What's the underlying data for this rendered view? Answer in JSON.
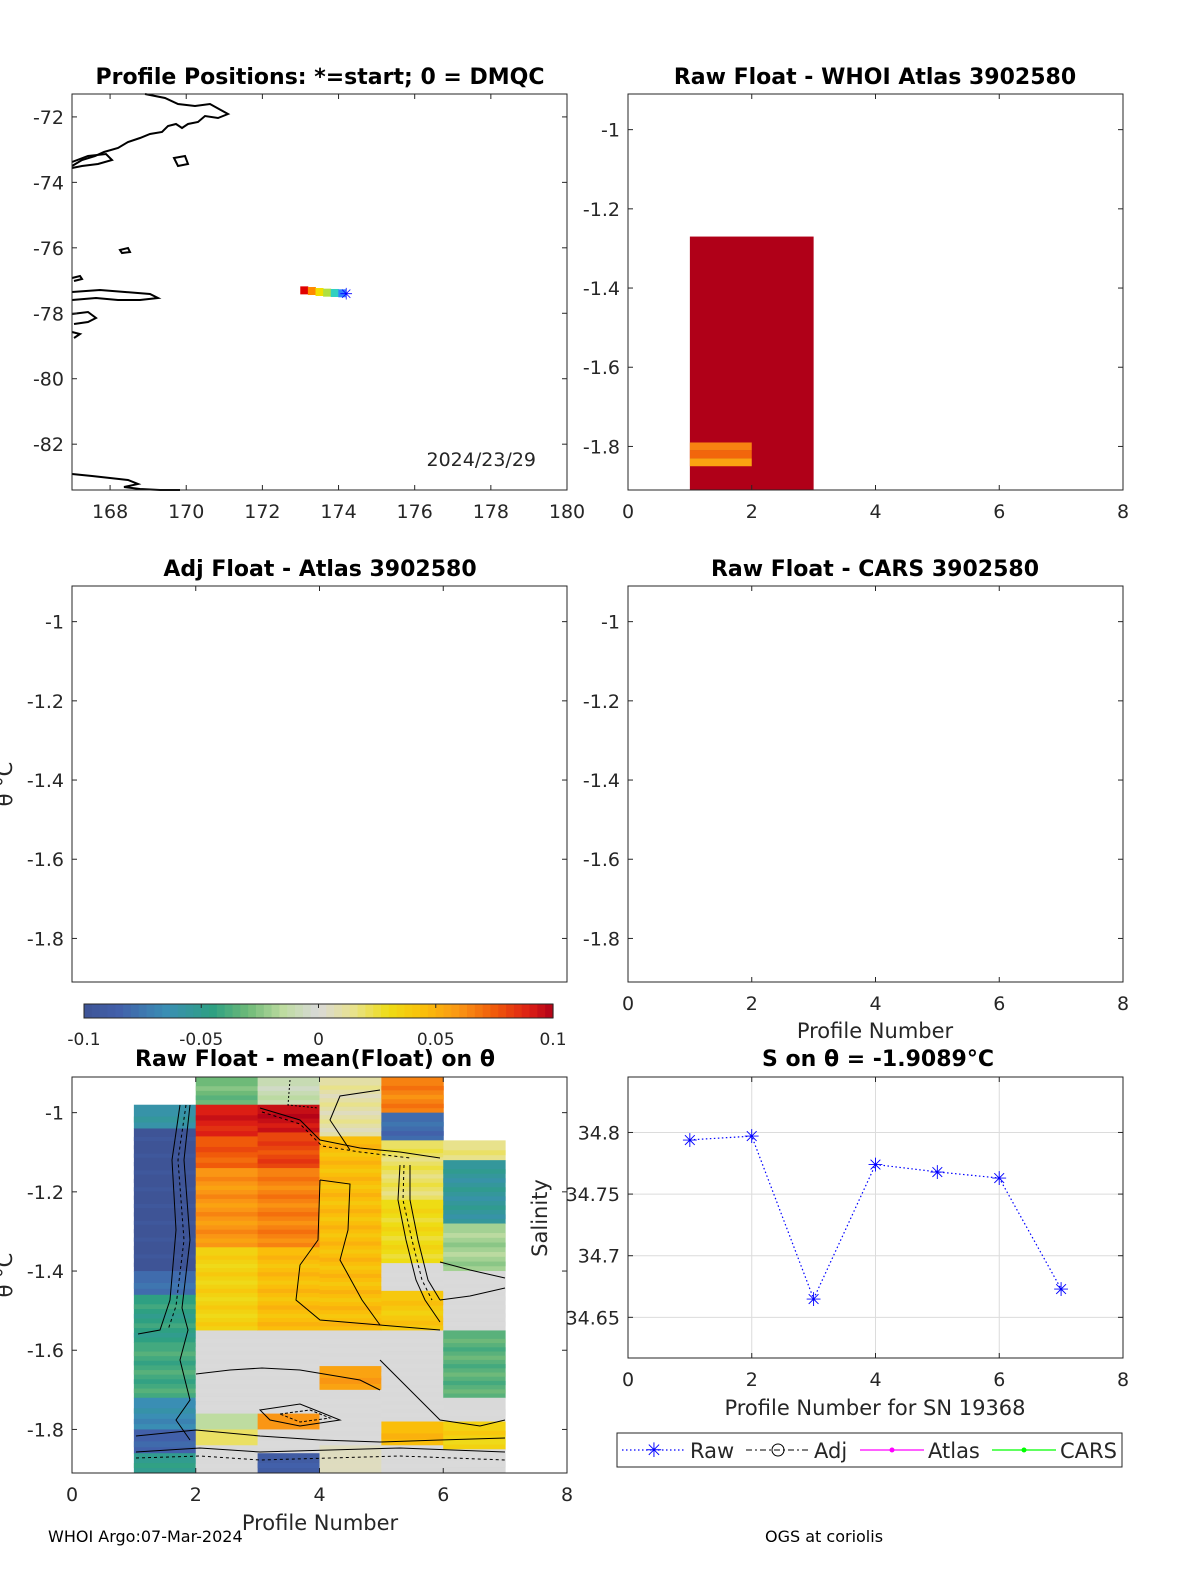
{
  "colors": {
    "raw": "#0000ff",
    "adj": "#000000",
    "atlas": "#ff00ff",
    "cars": "#00ff00"
  },
  "panel_positions": {
    "title": "Profile Positions: *=start; 0 = DMQC",
    "date_text": "2024/23/29",
    "xticks": [
      "168",
      "170",
      "172",
      "174",
      "176",
      "178",
      "180"
    ],
    "yticks": [
      "-72",
      "-74",
      "-76",
      "-78",
      "-80",
      "-82"
    ]
  },
  "panel_raw_atlas": {
    "title": "Raw Float - WHOI Atlas  3902580",
    "xticks": [
      "0",
      "2",
      "4",
      "6",
      "8"
    ],
    "yticks": [
      "-1",
      "-1.2",
      "-1.4",
      "-1.6",
      "-1.8"
    ]
  },
  "panel_adj_atlas": {
    "title": "Adj Float - Atlas  3902580",
    "ylabel": "θ °C",
    "yticks": [
      "-1",
      "-1.2",
      "-1.4",
      "-1.6",
      "-1.8"
    ]
  },
  "panel_raw_cars": {
    "title": "Raw Float - CARS  3902580",
    "xlabel": "Profile Number",
    "xticks": [
      "0",
      "2",
      "4",
      "6",
      "8"
    ],
    "yticks": [
      "-1",
      "-1.2",
      "-1.4",
      "-1.6",
      "-1.8"
    ]
  },
  "colorbar": {
    "ticks": [
      "-0.1",
      "-0.05",
      "0",
      "0.05",
      "0.1"
    ]
  },
  "panel_mean_float": {
    "title": "Raw Float - mean(Float) on θ",
    "xlabel": "Profile Number",
    "ylabel": "θ °C",
    "xticks": [
      "0",
      "2",
      "4",
      "6",
      "8"
    ],
    "yticks": [
      "-1",
      "-1.2",
      "-1.4",
      "-1.6",
      "-1.8"
    ]
  },
  "panel_salinity": {
    "title": "S on θ = -1.9089°C",
    "xlabel": "Profile Number for SN 19368",
    "ylabel": "Salinity",
    "xticks": [
      "0",
      "2",
      "4",
      "6",
      "8"
    ],
    "yticks": [
      "34.8",
      "34.75",
      "34.7",
      "34.65"
    ]
  },
  "legend": {
    "raw": "Raw",
    "adj": "Adj",
    "atlas": "Atlas",
    "cars": "CARS"
  },
  "footer": {
    "left": "WHOI Argo:07-Mar-2024",
    "right": "OGS at coriolis"
  },
  "chart_data": [
    {
      "type": "scatter",
      "title": "Profile Positions: *=start; 0 = DMQC",
      "xlim": [
        167,
        180
      ],
      "ylim": [
        -83.4,
        -71.3
      ],
      "x": [
        173.1,
        173.3,
        173.5,
        173.7,
        173.9,
        174.1,
        174.2
      ],
      "y": [
        -77.3,
        -77.32,
        -77.35,
        -77.37,
        -77.38,
        -77.39,
        -77.4
      ],
      "annotation": "2024/23/29"
    },
    {
      "type": "heatmap",
      "title": "Raw Float - WHOI Atlas  3902580",
      "xlim": [
        0,
        8
      ],
      "ylim": [
        -1.91,
        -0.91
      ],
      "cells": [
        {
          "x0": 1,
          "x1": 3,
          "y0": -1.91,
          "y1": -1.27,
          "value": 0.1
        },
        {
          "x0": 1,
          "x1": 2,
          "y0": -1.81,
          "y1": -1.79,
          "value": 0.065
        },
        {
          "x0": 1,
          "x1": 2,
          "y0": -1.83,
          "y1": -1.81,
          "value": 0.072
        },
        {
          "x0": 1,
          "x1": 2,
          "y0": -1.85,
          "y1": -1.83,
          "value": 0.055
        }
      ]
    },
    {
      "type": "heatmap",
      "title": "Adj Float - Atlas  3902580",
      "ylim": [
        -1.91,
        -0.91
      ],
      "cells": []
    },
    {
      "type": "heatmap",
      "title": "Raw Float - CARS  3902580",
      "xlabel": "Profile Number",
      "xlim": [
        0,
        8
      ],
      "ylim": [
        -1.91,
        -0.91
      ],
      "cells": []
    },
    {
      "type": "heatmap",
      "title": "Raw Float - mean(Float) on θ",
      "xlabel": "Profile Number",
      "ylabel": "θ °C",
      "xlim": [
        0,
        8
      ],
      "ylim": [
        -1.91,
        -0.91
      ],
      "clim": [
        -0.1,
        0.1
      ],
      "columns": [
        {
          "x0": 1,
          "x1": 2,
          "top": -0.98,
          "bins": [
            {
              "y0": -1.04,
              "y1": -0.98,
              "value": -0.06
            },
            {
              "y0": -1.4,
              "y1": -1.04,
              "value": -0.1
            },
            {
              "y0": -1.46,
              "y1": -1.4,
              "value": -0.08
            },
            {
              "y0": -1.58,
              "y1": -1.46,
              "value": -0.045
            },
            {
              "y0": -1.72,
              "y1": -1.58,
              "value": -0.04
            },
            {
              "y0": -1.8,
              "y1": -1.72,
              "value": -0.065
            },
            {
              "y0": -1.86,
              "y1": -1.8,
              "value": -0.085
            },
            {
              "y0": -1.91,
              "y1": -1.86,
              "value": -0.05
            }
          ]
        },
        {
          "x0": 2,
          "x1": 3,
          "top": -0.91,
          "bins": [
            {
              "y0": -0.98,
              "y1": -0.91,
              "value": -0.03
            },
            {
              "y0": -1.06,
              "y1": -0.98,
              "value": 0.09
            },
            {
              "y0": -1.14,
              "y1": -1.06,
              "value": 0.075
            },
            {
              "y0": -1.34,
              "y1": -1.14,
              "value": 0.06
            },
            {
              "y0": -1.55,
              "y1": -1.34,
              "value": 0.035
            },
            {
              "y0": -1.76,
              "y1": -1.55,
              "value": 0.0
            },
            {
              "y0": -1.8,
              "y1": -1.76,
              "value": -0.015
            },
            {
              "y0": -1.84,
              "y1": -1.8,
              "value": 0.02
            },
            {
              "y0": -1.91,
              "y1": -1.84,
              "value": 0.0
            }
          ]
        },
        {
          "x0": 3,
          "x1": 4,
          "top": -0.91,
          "bins": [
            {
              "y0": -0.98,
              "y1": -0.91,
              "value": -0.01
            },
            {
              "y0": -1.05,
              "y1": -0.98,
              "value": 0.095
            },
            {
              "y0": -1.14,
              "y1": -1.05,
              "value": 0.08
            },
            {
              "y0": -1.34,
              "y1": -1.14,
              "value": 0.065
            },
            {
              "y0": -1.55,
              "y1": -1.34,
              "value": 0.045
            },
            {
              "y0": -1.76,
              "y1": -1.55,
              "value": 0.0
            },
            {
              "y0": -1.8,
              "y1": -1.76,
              "value": 0.06
            },
            {
              "y0": -1.86,
              "y1": -1.8,
              "value": 0.0
            },
            {
              "y0": -1.91,
              "y1": -1.86,
              "value": -0.09
            }
          ]
        },
        {
          "x0": 4,
          "x1": 5,
          "top": -0.91,
          "bins": [
            {
              "y0": -1.06,
              "y1": -0.91,
              "value": 0.01
            },
            {
              "y0": -1.55,
              "y1": -1.06,
              "value": 0.045
            },
            {
              "y0": -1.64,
              "y1": -1.55,
              "value": 0.0
            },
            {
              "y0": -1.7,
              "y1": -1.64,
              "value": 0.055
            },
            {
              "y0": -1.84,
              "y1": -1.7,
              "value": 0.0
            },
            {
              "y0": -1.91,
              "y1": -1.84,
              "value": 0.005
            }
          ]
        },
        {
          "x0": 5,
          "x1": 6,
          "top": -0.91,
          "bins": [
            {
              "y0": -1.0,
              "y1": -0.91,
              "value": 0.065
            },
            {
              "y0": -1.07,
              "y1": -1.0,
              "value": -0.08
            },
            {
              "y0": -1.22,
              "y1": -1.07,
              "value": 0.02
            },
            {
              "y0": -1.38,
              "y1": -1.22,
              "value": 0.03
            },
            {
              "y0": -1.45,
              "y1": -1.38,
              "value": 0.0
            },
            {
              "y0": -1.55,
              "y1": -1.45,
              "value": 0.04
            },
            {
              "y0": -1.78,
              "y1": -1.55,
              "value": 0.0
            },
            {
              "y0": -1.84,
              "y1": -1.78,
              "value": 0.045
            },
            {
              "y0": -1.91,
              "y1": -1.84,
              "value": 0.0
            }
          ]
        },
        {
          "x0": 6,
          "x1": 7,
          "top": -1.07,
          "bins": [
            {
              "y0": -1.12,
              "y1": -1.07,
              "value": 0.015
            },
            {
              "y0": -1.28,
              "y1": -1.12,
              "value": -0.055
            },
            {
              "y0": -1.4,
              "y1": -1.28,
              "value": -0.02
            },
            {
              "y0": -1.55,
              "y1": -1.4,
              "value": 0.0
            },
            {
              "y0": -1.72,
              "y1": -1.55,
              "value": -0.035
            },
            {
              "y0": -1.78,
              "y1": -1.72,
              "value": 0.0
            },
            {
              "y0": -1.85,
              "y1": -1.78,
              "value": 0.035
            },
            {
              "y0": -1.91,
              "y1": -1.85,
              "value": 0.0
            }
          ]
        }
      ]
    },
    {
      "type": "line",
      "title": "S on θ = -1.9089°C",
      "xlabel": "Profile Number for SN 19368",
      "ylabel": "Salinity",
      "xlim": [
        0,
        8
      ],
      "ylim": [
        34.617,
        34.845
      ],
      "grid": true,
      "legend": "bottom",
      "series": [
        {
          "name": "Raw",
          "x": [
            1,
            2,
            3,
            4,
            5,
            6,
            7
          ],
          "y": [
            34.794,
            34.797,
            34.665,
            34.774,
            34.768,
            34.763,
            34.673
          ]
        },
        {
          "name": "Adj",
          "x": [],
          "y": []
        },
        {
          "name": "Atlas",
          "x": [],
          "y": []
        },
        {
          "name": "CARS",
          "x": [],
          "y": []
        }
      ]
    }
  ]
}
